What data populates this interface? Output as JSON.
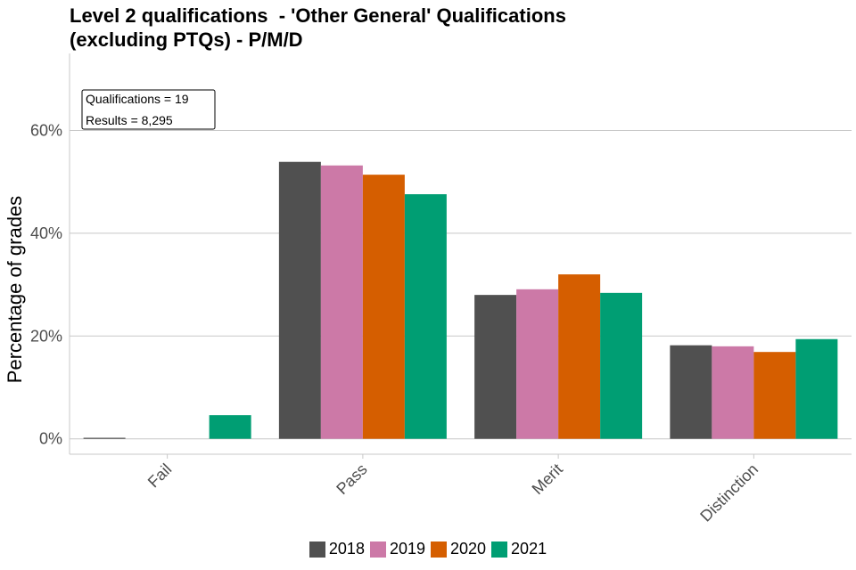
{
  "chart_data": {
    "type": "bar",
    "title_lines": [
      "Level 2 qualifications  - 'Other General' Qualifications",
      "(excluding PTQs) - P/M/D"
    ],
    "ylabel": "Percentage of grades",
    "xlabel": "",
    "categories": [
      "Fail",
      "Pass",
      "Merit",
      "Distinction"
    ],
    "series": [
      {
        "name": "2018",
        "color": "#505050",
        "values": [
          0.2,
          53.9,
          28.0,
          18.2
        ]
      },
      {
        "name": "2019",
        "color": "#CC79A7",
        "values": [
          0.0,
          53.2,
          29.1,
          18.0
        ]
      },
      {
        "name": "2020",
        "color": "#D55E00",
        "values": [
          0.0,
          51.4,
          32.0,
          16.9
        ]
      },
      {
        "name": "2021",
        "color": "#009E73",
        "values": [
          4.6,
          47.6,
          28.4,
          19.4
        ]
      }
    ],
    "ylim": [
      -3,
      75
    ],
    "yticks": [
      0,
      20,
      40,
      60
    ],
    "ytick_labels": [
      "0%",
      "20%",
      "40%",
      "60%"
    ],
    "grid": true,
    "legend_position": "bottom",
    "annotation": [
      "Qualifications = 19",
      "Results = 8,295"
    ]
  }
}
